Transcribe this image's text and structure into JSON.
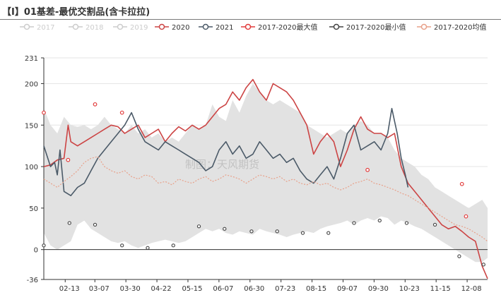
{
  "header": {
    "title": "【I】01基差-最优交割品(含卡拉拉)"
  },
  "watermark": "制图：天风期货",
  "colors": {
    "s2017": "#d6d6d6",
    "s2018": "#d6d6d6",
    "s2019": "#d6d6d6",
    "s2020": "#cc4444",
    "s2021": "#4b5a68",
    "max": "#e23b3b",
    "min": "#444444",
    "avg": "#e8a089",
    "band": "#e2e2e2",
    "grid": "#e6e6e6",
    "axis": "#333333"
  },
  "chart_data": {
    "type": "line",
    "title": "【I】01基差-最优交割品(含卡拉拉)",
    "xlabel": "",
    "ylabel": "",
    "ylim": [
      -36,
      231
    ],
    "yticks": [
      -36,
      0,
      50,
      100,
      150,
      200,
      231
    ],
    "xdomain": [
      0,
      329
    ],
    "xticks": [
      {
        "label": "02-13",
        "x": 19
      },
      {
        "label": "03-07",
        "x": 41
      },
      {
        "label": "03-30",
        "x": 64
      },
      {
        "label": "04-22",
        "x": 87
      },
      {
        "label": "05-15",
        "x": 110
      },
      {
        "label": "06-07",
        "x": 133
      },
      {
        "label": "06-30",
        "x": 156
      },
      {
        "label": "07-23",
        "x": 179
      },
      {
        "label": "08-15",
        "x": 202
      },
      {
        "label": "09-07",
        "x": 225
      },
      {
        "label": "09-30",
        "x": 248
      },
      {
        "label": "10-23",
        "x": 271
      },
      {
        "label": "11-15",
        "x": 294
      },
      {
        "label": "12-08",
        "x": 317
      }
    ],
    "legend": [
      {
        "key": "s2017",
        "label": "2017",
        "enabled": false
      },
      {
        "key": "s2018",
        "label": "2018",
        "enabled": false
      },
      {
        "key": "s2019",
        "label": "2019",
        "enabled": false
      },
      {
        "key": "s2020",
        "label": "2020",
        "enabled": true
      },
      {
        "key": "s2021",
        "label": "2021",
        "enabled": true
      },
      {
        "key": "max",
        "label": "2017-2020最大值",
        "enabled": true
      },
      {
        "key": "min",
        "label": "2017-2020最小值",
        "enabled": true
      },
      {
        "key": "avg",
        "label": "2017-2020均值",
        "enabled": true
      }
    ],
    "band": {
      "name": "2017-2020区间",
      "x": [
        0,
        5,
        10,
        15,
        20,
        25,
        30,
        35,
        40,
        45,
        50,
        55,
        60,
        65,
        70,
        75,
        80,
        85,
        90,
        95,
        100,
        105,
        110,
        115,
        120,
        125,
        130,
        135,
        140,
        145,
        150,
        155,
        160,
        165,
        170,
        175,
        180,
        185,
        190,
        195,
        200,
        205,
        210,
        215,
        220,
        225,
        230,
        235,
        240,
        245,
        250,
        255,
        260,
        265,
        270,
        275,
        280,
        285,
        290,
        295,
        300,
        305,
        310,
        315,
        320,
        325,
        329
      ],
      "upper": [
        170,
        150,
        140,
        160,
        150,
        148,
        150,
        145,
        150,
        160,
        150,
        145,
        140,
        150,
        140,
        145,
        135,
        140,
        130,
        135,
        130,
        140,
        150,
        145,
        150,
        175,
        160,
        155,
        180,
        165,
        185,
        200,
        190,
        180,
        175,
        180,
        175,
        170,
        165,
        150,
        145,
        140,
        135,
        140,
        145,
        140,
        150,
        155,
        150,
        140,
        140,
        135,
        120,
        110,
        105,
        100,
        90,
        85,
        75,
        70,
        65,
        60,
        55,
        50,
        55,
        60,
        50
      ],
      "lower": [
        20,
        5,
        0,
        5,
        10,
        30,
        35,
        25,
        20,
        15,
        10,
        8,
        10,
        5,
        2,
        5,
        8,
        10,
        12,
        10,
        8,
        10,
        15,
        20,
        25,
        22,
        25,
        20,
        18,
        22,
        20,
        18,
        25,
        22,
        20,
        18,
        15,
        18,
        20,
        22,
        20,
        25,
        28,
        30,
        32,
        35,
        30,
        35,
        38,
        35,
        40,
        38,
        30,
        35,
        32,
        28,
        25,
        20,
        15,
        10,
        5,
        0,
        -5,
        -10,
        -15,
        -15,
        -10
      ]
    },
    "series": [
      {
        "key": "s2020",
        "name": "2020",
        "x": [
          0,
          5,
          10,
          15,
          18,
          20,
          25,
          30,
          35,
          40,
          45,
          50,
          55,
          60,
          65,
          70,
          75,
          80,
          85,
          90,
          95,
          100,
          105,
          110,
          115,
          120,
          125,
          130,
          135,
          140,
          145,
          150,
          155,
          160,
          165,
          170,
          175,
          180,
          185,
          190,
          195,
          200,
          205,
          210,
          215,
          220,
          225,
          230,
          235,
          240,
          245,
          250,
          255,
          260,
          265,
          270,
          275,
          280,
          285,
          290,
          295,
          300,
          305,
          310,
          315,
          320,
          325,
          329
        ],
        "values": [
          100,
          102,
          108,
          110,
          150,
          130,
          125,
          130,
          135,
          140,
          145,
          150,
          148,
          140,
          145,
          150,
          135,
          140,
          145,
          130,
          140,
          148,
          143,
          150,
          145,
          150,
          160,
          170,
          175,
          190,
          180,
          195,
          205,
          190,
          180,
          200,
          195,
          190,
          180,
          165,
          150,
          115,
          130,
          140,
          130,
          100,
          120,
          145,
          160,
          145,
          140,
          140,
          135,
          140,
          100,
          80,
          70,
          60,
          50,
          40,
          30,
          25,
          28,
          22,
          15,
          10,
          -20,
          -35
        ]
      },
      {
        "key": "s2021",
        "name": "2021",
        "x": [
          0,
          5,
          8,
          10,
          12,
          15,
          20,
          25,
          30,
          35,
          40,
          45,
          50,
          55,
          60,
          65,
          70,
          75,
          80,
          85,
          90,
          95,
          100,
          105,
          110,
          115,
          120,
          125,
          130,
          135,
          140,
          145,
          150,
          155,
          160,
          165,
          170,
          175,
          180,
          185,
          190,
          195,
          200,
          205,
          210,
          215,
          220,
          225,
          230,
          235,
          240,
          245,
          250,
          255,
          258,
          260,
          262,
          265,
          268,
          270
        ],
        "values": [
          125,
          100,
          105,
          90,
          120,
          70,
          65,
          75,
          80,
          95,
          110,
          120,
          130,
          140,
          150,
          165,
          145,
          130,
          125,
          120,
          130,
          125,
          120,
          115,
          110,
          105,
          95,
          100,
          120,
          130,
          115,
          125,
          110,
          115,
          130,
          120,
          110,
          115,
          105,
          110,
          95,
          85,
          80,
          90,
          100,
          85,
          110,
          140,
          150,
          120,
          125,
          130,
          120,
          140,
          170,
          155,
          140,
          110,
          90,
          75
        ]
      },
      {
        "key": "avg",
        "name": "2017-2020均值",
        "dashed": true,
        "x": [
          0,
          5,
          10,
          15,
          20,
          25,
          30,
          35,
          40,
          45,
          50,
          55,
          60,
          65,
          70,
          75,
          80,
          85,
          90,
          95,
          100,
          105,
          110,
          115,
          120,
          125,
          130,
          135,
          140,
          145,
          150,
          155,
          160,
          165,
          170,
          175,
          180,
          185,
          190,
          195,
          200,
          205,
          210,
          215,
          220,
          225,
          230,
          235,
          240,
          245,
          250,
          255,
          260,
          265,
          270,
          275,
          280,
          285,
          290,
          295,
          300,
          305,
          310,
          315,
          320,
          325,
          329
        ],
        "values": [
          85,
          80,
          75,
          82,
          88,
          95,
          105,
          110,
          112,
          100,
          95,
          92,
          95,
          88,
          85,
          90,
          88,
          80,
          82,
          78,
          85,
          82,
          80,
          85,
          88,
          82,
          85,
          90,
          88,
          85,
          80,
          85,
          90,
          88,
          85,
          88,
          82,
          85,
          80,
          78,
          82,
          78,
          80,
          75,
          72,
          75,
          80,
          82,
          85,
          80,
          78,
          75,
          72,
          68,
          65,
          60,
          55,
          50,
          45,
          40,
          35,
          30,
          28,
          25,
          20,
          15,
          10
        ]
      }
    ],
    "max_points": {
      "name": "2017-2020最大值",
      "x": [
        0,
        18,
        38,
        58,
        240,
        310,
        313
      ],
      "values": [
        165,
        108,
        175,
        165,
        96,
        79,
        40
      ]
    },
    "min_points": {
      "name": "2017-2020最小值",
      "x": [
        0,
        19,
        38,
        58,
        77,
        96,
        115,
        134,
        154,
        173,
        192,
        211,
        230,
        249,
        269,
        290,
        308,
        326
      ],
      "values": [
        5,
        32,
        30,
        5,
        2,
        5,
        28,
        25,
        22,
        22,
        20,
        20,
        32,
        35,
        32,
        30,
        -8,
        -18
      ]
    }
  }
}
